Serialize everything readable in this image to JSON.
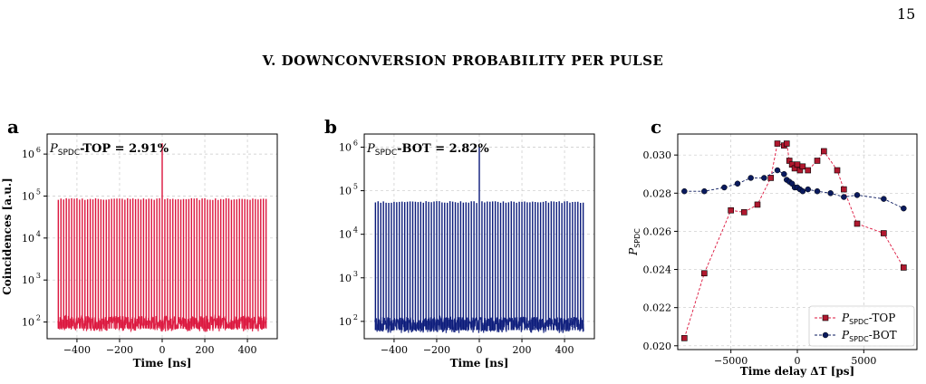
{
  "page_number": "15",
  "section_heading": "V.   DOWNCONVERSION PROBABILITY PER PULSE",
  "panels": [
    {
      "letter": "a",
      "annotation_prefix": "SPDC",
      "annotation_suffix": "-TOP = 2.91%",
      "color": "#dc143c"
    },
    {
      "letter": "b",
      "annotation_prefix": "SPDC",
      "annotation_suffix": "-BOT = 2.82%",
      "color": "#0a1a7a"
    },
    {
      "letter": "c"
    }
  ],
  "chart_data": [
    {
      "type": "line",
      "panel": "a",
      "title": "",
      "annotation": "P_SPDC-TOP = 2.91%",
      "xlabel": "Time [ns]",
      "ylabel": "Coincidences [a.u.]",
      "xlim": [
        -540,
        540
      ],
      "ylim_log": [
        40,
        3000000
      ],
      "y_scale": "log",
      "x_ticks": [
        -400,
        -200,
        0,
        200,
        400
      ],
      "x_tick_labels": [
        "−400",
        "−200",
        "0",
        "200",
        "400"
      ],
      "y_ticks": [
        100,
        1000,
        10000,
        100000,
        1000000
      ],
      "y_tick_labels": [
        "10",
        "10",
        "10",
        "10",
        "10"
      ],
      "y_tick_exponents": [
        "2",
        "3",
        "4",
        "5",
        "6"
      ],
      "grid": true,
      "series": [
        {
          "pulse_period_ns": 12.5,
          "x_range": [
            -490,
            490
          ],
          "side_peak_height": 85000,
          "central_peak_height": 1800000,
          "baseline": 100,
          "color": "#dc143c"
        }
      ]
    },
    {
      "type": "line",
      "panel": "b",
      "title": "",
      "annotation": "P_SPDC-BOT = 2.82%",
      "xlabel": "Time [ns]",
      "ylabel": "",
      "xlim": [
        -540,
        540
      ],
      "ylim_log": [
        40,
        2000000
      ],
      "y_scale": "log",
      "x_ticks": [
        -400,
        -200,
        0,
        200,
        400
      ],
      "x_tick_labels": [
        "−400",
        "−200",
        "0",
        "200",
        "400"
      ],
      "y_ticks": [
        100,
        1000,
        10000,
        100000,
        1000000
      ],
      "y_tick_labels": [
        "10",
        "10",
        "10",
        "10",
        "10"
      ],
      "y_tick_exponents": [
        "2",
        "3",
        "4",
        "5",
        "6"
      ],
      "grid": true,
      "series": [
        {
          "pulse_period_ns": 12.5,
          "x_range": [
            -490,
            490
          ],
          "side_peak_height": 55000,
          "central_peak_height": 1000000,
          "baseline": 90,
          "color": "#0a1a7a"
        }
      ]
    },
    {
      "type": "line",
      "panel": "c",
      "title": "",
      "xlabel": "Time delay ΔT [ps]",
      "ylabel": "P_SPDC",
      "xlim": [
        -9000,
        9000
      ],
      "ylim": [
        0.0198,
        0.0311
      ],
      "x_ticks": [
        -5000,
        0,
        5000
      ],
      "x_tick_labels": [
        "−5000",
        "0",
        "5000"
      ],
      "y_ticks": [
        0.02,
        0.022,
        0.024,
        0.026,
        0.028,
        0.03
      ],
      "y_tick_labels": [
        "0.020",
        "0.022",
        "0.024",
        "0.026",
        "0.028",
        "0.030"
      ],
      "grid": true,
      "legend_position": "bottom-right",
      "series": [
        {
          "name": "P_SPDC-TOP",
          "legend_label": "-TOP",
          "marker": "square",
          "color": "#dc143c",
          "marker_color": "#b0182e",
          "x": [
            -8500,
            -7000,
            -5000,
            -4000,
            -3000,
            -2000,
            -1500,
            -1000,
            -800,
            -600,
            -400,
            -200,
            0,
            200,
            400,
            800,
            1500,
            2000,
            3000,
            3500,
            4500,
            6500,
            8000
          ],
          "y": [
            0.0204,
            0.0238,
            0.0271,
            0.027,
            0.0274,
            0.0288,
            0.0306,
            0.0305,
            0.0306,
            0.0297,
            0.0295,
            0.0293,
            0.0295,
            0.0292,
            0.0294,
            0.0292,
            0.0297,
            0.0302,
            0.0292,
            0.0282,
            0.0264,
            0.0259,
            0.0241
          ]
        },
        {
          "name": "P_SPDC-BOT",
          "legend_label": "-BOT",
          "marker": "circle",
          "color": "#0a1a5e",
          "marker_color": "#0a1a5e",
          "x": [
            -8500,
            -7000,
            -5500,
            -4500,
            -3500,
            -2500,
            -1500,
            -1000,
            -800,
            -600,
            -400,
            -200,
            0,
            200,
            400,
            800,
            1500,
            2500,
            3500,
            4500,
            6500,
            8000
          ],
          "y": [
            0.0281,
            0.0281,
            0.0283,
            0.0285,
            0.0288,
            0.0288,
            0.0292,
            0.029,
            0.0287,
            0.0286,
            0.0285,
            0.0283,
            0.0283,
            0.0282,
            0.0281,
            0.0282,
            0.0281,
            0.028,
            0.0278,
            0.0279,
            0.0277,
            0.0272
          ]
        }
      ]
    }
  ]
}
